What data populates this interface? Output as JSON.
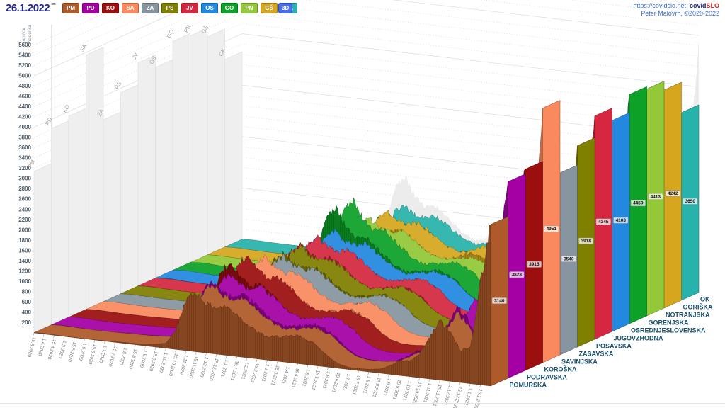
{
  "header": {
    "date": "26.1.2022",
    "date_note": "sre",
    "threed_label": "3D",
    "site_url": "https://covidslo.net",
    "brand_covid": "covid",
    "brand_slo": "SLO",
    "credit": "Peter Malovrh, ©2020-2022"
  },
  "yaxis": {
    "label_line1": "7d/100k",
    "label_line2": "incidenca",
    "min": 200,
    "max": 5600,
    "step": 200
  },
  "chart_data": {
    "type": "3d-ribbon",
    "ylabel": "7d/100k incidenca",
    "ylim": [
      0,
      5600
    ],
    "end_date": "26.1.2022",
    "x_tick_labels": [
      "15.3.2020",
      "1.4.2020",
      "15.4.2020",
      "1.5.2020",
      "15.5.2020",
      "1.6.2020",
      "15.6.2020",
      "1.7.2020",
      "15.7.2020",
      "1.8.2020",
      "15.8.2020",
      "1.9.2020",
      "15.9.2020",
      "1.10.2020",
      "15.10.2020",
      "1.11.2020",
      "15.11.2020",
      "1.12.2020",
      "15.12.2020",
      "1.1.2021",
      "15.1.2021",
      "1.2.2021",
      "15.2.2021",
      "1.3.2021",
      "15.3.2021",
      "1.4.2021",
      "15.4.2021",
      "1.5.2021",
      "15.5.2021",
      "1.6.2021",
      "15.6.2021",
      "1.7.2021",
      "15.7.2021",
      "1.8.2021",
      "15.8.2021",
      "1.9.2021",
      "15.9.2021",
      "1.10.2021",
      "15.10.2021",
      "1.11.2021",
      "15.11.2021",
      "1.12.2021",
      "15.12.2021",
      "1.1.2022",
      "15.1.2022"
    ],
    "series": [
      {
        "code": "PM",
        "name": "POMURSKA",
        "color": "#AE5A2A",
        "final": 3140,
        "values": [
          5,
          15,
          10,
          5,
          3,
          3,
          4,
          8,
          15,
          18,
          22,
          35,
          55,
          100,
          380,
          1000,
          1150,
          950,
          900,
          950,
          820,
          650,
          520,
          450,
          480,
          500,
          540,
          480,
          380,
          200,
          90,
          45,
          40,
          50,
          75,
          160,
          280,
          300,
          450,
          800,
          1150,
          950,
          620,
          700,
          2000,
          3140
        ]
      },
      {
        "code": "PD",
        "name": "PODRAVSKA",
        "color": "#A400A4",
        "final": 3823,
        "values": [
          6,
          20,
          15,
          8,
          4,
          3,
          5,
          10,
          18,
          22,
          28,
          42,
          65,
          115,
          420,
          1050,
          1200,
          1000,
          950,
          1000,
          880,
          720,
          580,
          500,
          530,
          560,
          600,
          540,
          430,
          230,
          110,
          55,
          45,
          60,
          85,
          185,
          320,
          340,
          500,
          880,
          1280,
          1050,
          680,
          780,
          2300,
          3823
        ]
      },
      {
        "code": "KO",
        "name": "KOROŠKA",
        "color": "#9B0F0F",
        "final": 3915,
        "values": [
          4,
          12,
          8,
          4,
          2,
          2,
          3,
          6,
          12,
          15,
          20,
          30,
          50,
          95,
          450,
          1250,
          1400,
          1150,
          1000,
          1050,
          900,
          730,
          580,
          490,
          510,
          540,
          580,
          520,
          410,
          220,
          100,
          50,
          40,
          55,
          80,
          170,
          300,
          320,
          480,
          850,
          1220,
          1000,
          650,
          720,
          2200,
          3915
        ]
      },
      {
        "code": "SA",
        "name": "SAVINJSKA",
        "color": "#FA8A5E",
        "final": 4951,
        "values": [
          5,
          16,
          12,
          6,
          3,
          3,
          4,
          9,
          16,
          20,
          25,
          38,
          60,
          110,
          420,
          1100,
          1250,
          1050,
          950,
          1000,
          870,
          710,
          570,
          490,
          520,
          555,
          600,
          540,
          430,
          230,
          110,
          55,
          45,
          60,
          88,
          190,
          330,
          350,
          510,
          900,
          1320,
          1080,
          700,
          800,
          2600,
          4951
        ]
      },
      {
        "code": "ZA",
        "name": "ZASAVSKA",
        "color": "#8695A0",
        "final": 3540,
        "values": [
          4,
          14,
          10,
          5,
          3,
          2,
          4,
          8,
          15,
          18,
          23,
          35,
          55,
          100,
          380,
          950,
          1100,
          950,
          880,
          930,
          810,
          660,
          530,
          460,
          490,
          520,
          560,
          500,
          400,
          210,
          100,
          50,
          42,
          55,
          80,
          170,
          300,
          320,
          470,
          830,
          1200,
          980,
          640,
          720,
          2100,
          3540
        ]
      },
      {
        "code": "PS",
        "name": "POSAVSKA",
        "color": "#7F7F00",
        "final": 3918,
        "values": [
          5,
          15,
          11,
          6,
          3,
          3,
          4,
          9,
          16,
          20,
          25,
          38,
          60,
          108,
          400,
          1000,
          1150,
          980,
          910,
          960,
          840,
          690,
          550,
          475,
          505,
          540,
          580,
          520,
          415,
          220,
          105,
          52,
          44,
          58,
          84,
          180,
          315,
          335,
          490,
          870,
          1260,
          1030,
          670,
          760,
          2300,
          3918
        ]
      },
      {
        "code": "JV",
        "name": "JUGOVZHODNA",
        "color": "#D52840",
        "final": 4345,
        "values": [
          6,
          18,
          13,
          7,
          4,
          3,
          5,
          10,
          18,
          22,
          27,
          40,
          63,
          112,
          410,
          1020,
          1170,
          1000,
          930,
          980,
          860,
          700,
          560,
          485,
          515,
          550,
          590,
          530,
          425,
          225,
          108,
          54,
          46,
          60,
          86,
          185,
          325,
          345,
          505,
          890,
          1300,
          1060,
          690,
          790,
          2500,
          4345
        ]
      },
      {
        "code": "OS",
        "name": "OSREDNJESLOVENSKA",
        "color": "#2288E0",
        "final": 4103,
        "values": [
          8,
          30,
          24,
          12,
          6,
          5,
          7,
          13,
          24,
          28,
          33,
          48,
          75,
          125,
          430,
          1000,
          1130,
          970,
          900,
          950,
          830,
          680,
          545,
          470,
          500,
          535,
          575,
          515,
          410,
          220,
          105,
          52,
          44,
          58,
          85,
          180,
          315,
          335,
          495,
          870,
          1260,
          1030,
          670,
          780,
          2400,
          4103
        ]
      },
      {
        "code": "GO",
        "name": "GORENJSKA",
        "color": "#0DA128",
        "final": 4459,
        "values": [
          7,
          25,
          20,
          10,
          5,
          4,
          6,
          11,
          20,
          24,
          29,
          44,
          68,
          118,
          480,
          1350,
          1600,
          1250,
          1050,
          1080,
          920,
          740,
          590,
          500,
          530,
          565,
          605,
          545,
          435,
          230,
          110,
          55,
          46,
          60,
          87,
          185,
          325,
          345,
          505,
          890,
          1300,
          1060,
          690,
          790,
          2500,
          4459
        ]
      },
      {
        "code": "PN",
        "name": "NOTRANJSKA",
        "color": "#93C838",
        "final": 4413,
        "values": [
          4,
          12,
          9,
          5,
          2,
          2,
          3,
          7,
          13,
          16,
          21,
          32,
          52,
          98,
          380,
          950,
          1080,
          930,
          870,
          920,
          800,
          655,
          525,
          455,
          485,
          515,
          555,
          500,
          398,
          210,
          100,
          50,
          42,
          55,
          79,
          168,
          295,
          315,
          465,
          820,
          1190,
          970,
          630,
          710,
          2300,
          4413
        ]
      },
      {
        "code": "GŠ",
        "name": "GORIŠKA",
        "color": "#D6A71E",
        "final": 4242,
        "values": [
          4,
          13,
          9,
          5,
          3,
          2,
          4,
          7,
          14,
          17,
          22,
          33,
          53,
          100,
          370,
          930,
          1060,
          920,
          860,
          910,
          795,
          650,
          520,
          450,
          480,
          560,
          640,
          580,
          460,
          240,
          115,
          57,
          47,
          62,
          90,
          192,
          335,
          355,
          520,
          860,
          1240,
          1010,
          660,
          740,
          2300,
          4242
        ]
      },
      {
        "code": "OK",
        "name": "OK",
        "color": "#27B3AB",
        "final": 3650,
        "values": [
          4,
          12,
          8,
          4,
          2,
          2,
          3,
          6,
          12,
          16,
          20,
          30,
          50,
          95,
          350,
          880,
          1000,
          880,
          830,
          880,
          765,
          625,
          500,
          435,
          465,
          495,
          535,
          480,
          385,
          205,
          98,
          48,
          40,
          53,
          77,
          165,
          290,
          310,
          455,
          800,
          1160,
          950,
          620,
          700,
          2100,
          3650
        ]
      }
    ]
  }
}
